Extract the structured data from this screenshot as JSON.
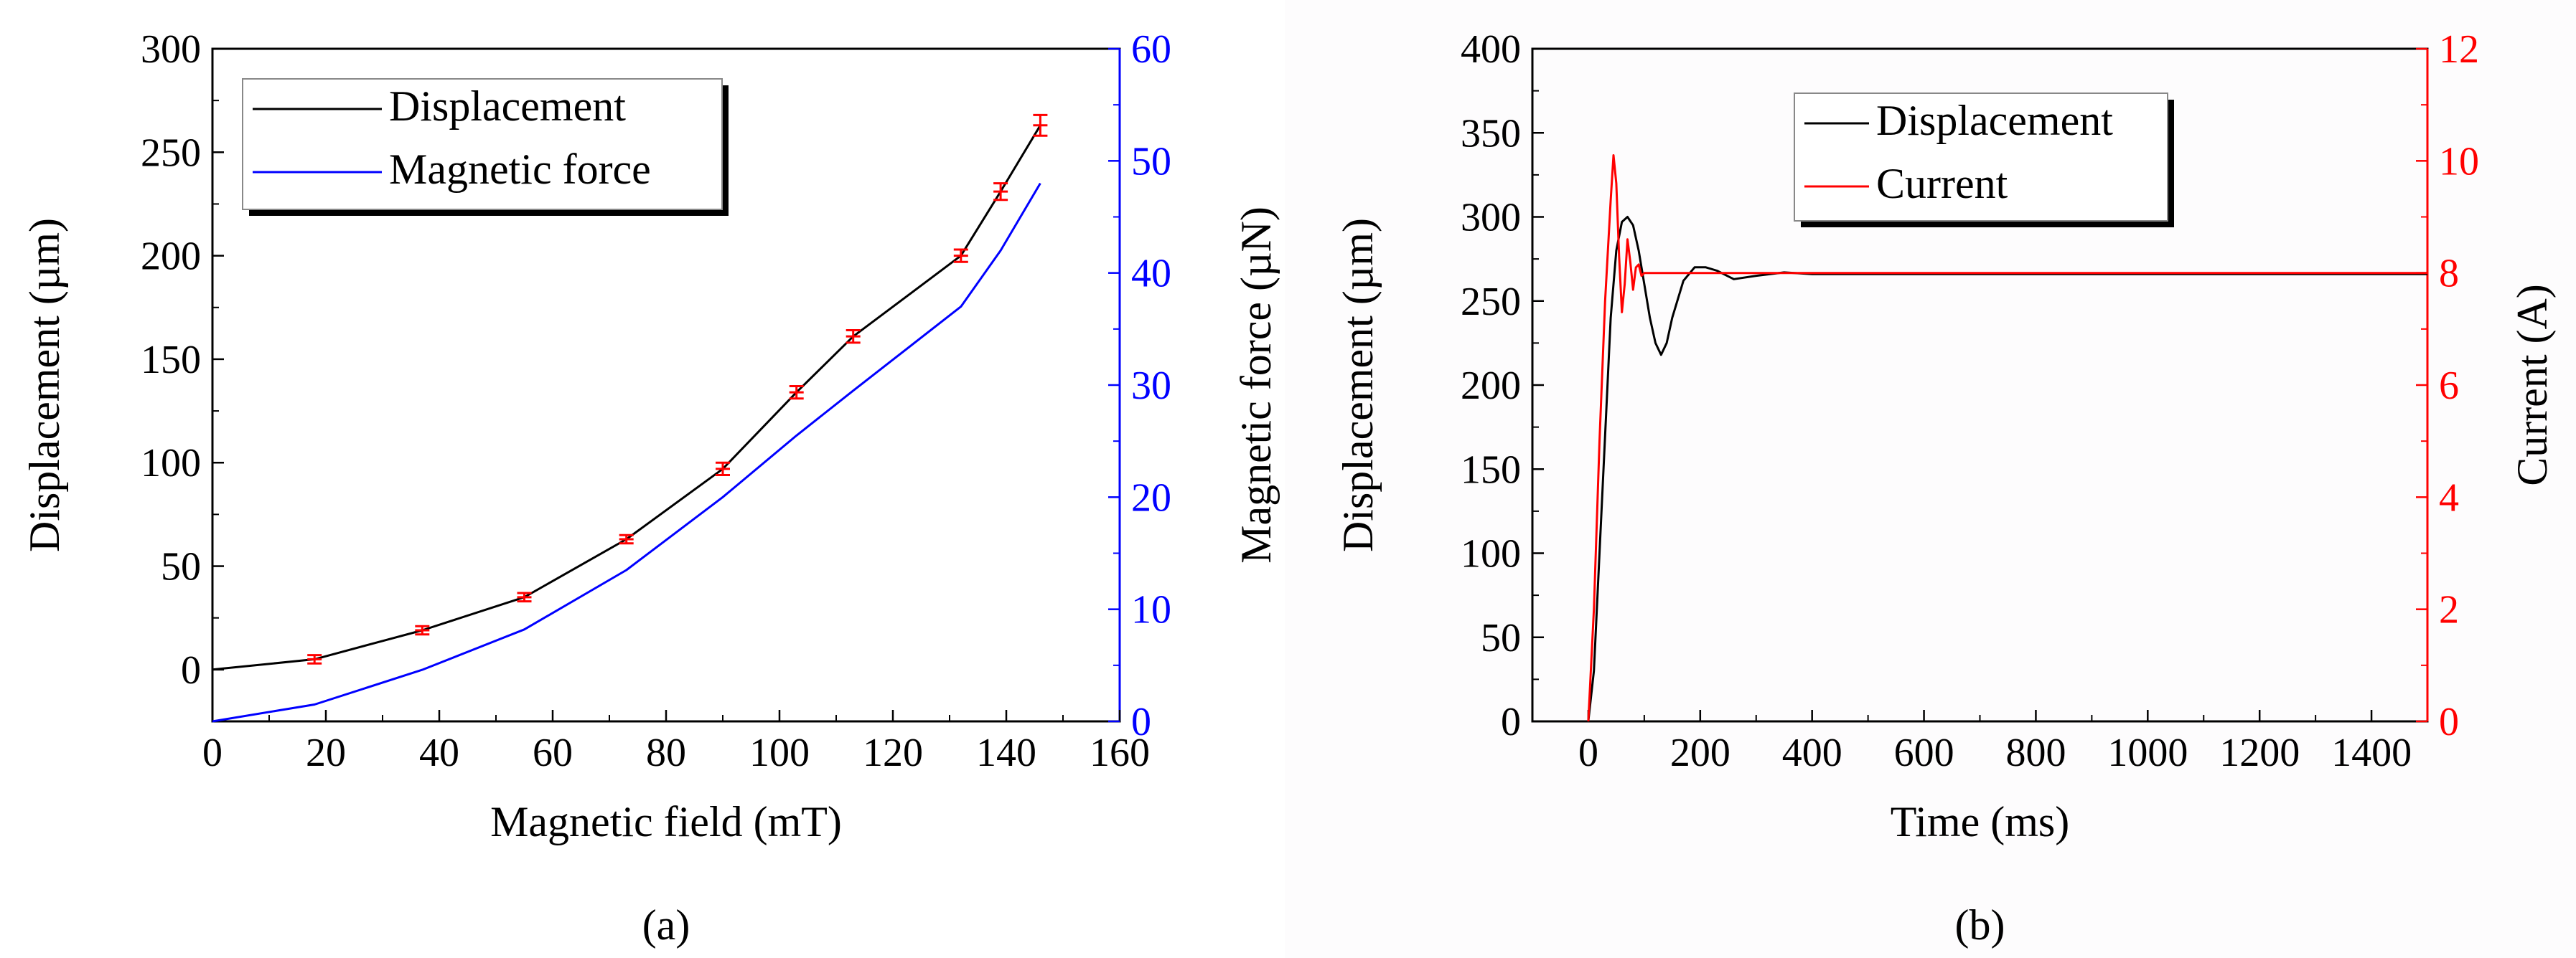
{
  "chart_data": [
    {
      "type": "line",
      "caption": "(a)",
      "xlabel": "Magnetic field (mT)",
      "ylabel": "Displacement (µm)",
      "y2label": "Magnetic force (µN)",
      "xlim": [
        0,
        160
      ],
      "ylim": [
        -25,
        300
      ],
      "y2lim": [
        0,
        60
      ],
      "xticks": [
        "0",
        "20",
        "40",
        "60",
        "80",
        "100",
        "120",
        "140",
        "160"
      ],
      "yticks": [
        "0",
        "50",
        "100",
        "150",
        "200",
        "250",
        "300"
      ],
      "y2ticks": [
        "0",
        "10",
        "20",
        "30",
        "40",
        "50",
        "60"
      ],
      "legend": [
        "Displacement",
        "Magnetic force"
      ],
      "legend_position": "top-left",
      "series": [
        {
          "name": "Displacement",
          "axis": "left",
          "color": "#000000",
          "x": [
            0,
            18,
            37,
            55,
            73,
            90,
            103,
            113,
            132,
            139,
            146
          ],
          "y": [
            0,
            5,
            19,
            35,
            63,
            97,
            134,
            161,
            200,
            231,
            263
          ],
          "error": [
            0,
            2,
            2,
            2,
            2,
            3,
            3,
            3,
            3,
            4,
            5
          ],
          "error_color": "#ff0000"
        },
        {
          "name": "Magnetic force",
          "axis": "right",
          "color": "#0000ff",
          "x": [
            0,
            18,
            37,
            55,
            73,
            90,
            103,
            113,
            132,
            139,
            146
          ],
          "y": [
            0,
            1.5,
            4.6,
            8.2,
            13.5,
            20,
            25.5,
            29.5,
            37,
            42,
            48
          ]
        }
      ]
    },
    {
      "type": "line",
      "caption": "(b)",
      "xlabel": "Time (ms)",
      "ylabel": "Displacement (µm)",
      "y2label": "Current (A)",
      "xlim": [
        -100,
        1500
      ],
      "ylim": [
        0,
        400
      ],
      "y2lim": [
        0,
        12
      ],
      "xticks": [
        "0",
        "200",
        "400",
        "600",
        "800",
        "1000",
        "1200",
        "1400"
      ],
      "yticks": [
        "0",
        "50",
        "100",
        "150",
        "200",
        "250",
        "300",
        "350",
        "400"
      ],
      "y2ticks": [
        "0",
        "2",
        "4",
        "6",
        "8",
        "10",
        "12"
      ],
      "legend": [
        "Displacement",
        "Current"
      ],
      "legend_position": "top-center",
      "series": [
        {
          "name": "Displacement",
          "axis": "left",
          "color": "#000000",
          "x": [
            0,
            10,
            20,
            30,
            40,
            50,
            60,
            70,
            80,
            90,
            100,
            110,
            120,
            130,
            140,
            150,
            170,
            190,
            210,
            230,
            260,
            300,
            350,
            400,
            600,
            1000,
            1500
          ],
          "y": [
            0,
            30,
            100,
            170,
            240,
            280,
            297,
            300,
            295,
            280,
            260,
            240,
            225,
            218,
            225,
            240,
            262,
            270,
            270,
            268,
            263,
            265,
            267,
            266,
            266,
            266,
            266
          ]
        },
        {
          "name": "Current",
          "axis": "right",
          "color": "#ff0000",
          "x": [
            0,
            10,
            20,
            30,
            40,
            45,
            50,
            55,
            60,
            65,
            70,
            75,
            80,
            85,
            90,
            95,
            100,
            110,
            120,
            1500
          ],
          "y": [
            0,
            2,
            5,
            7.5,
            9.3,
            10.1,
            9.6,
            8.3,
            7.3,
            7.8,
            8.6,
            8.2,
            7.7,
            8.1,
            8.15,
            7.95,
            8.0,
            8.0,
            8.0,
            8.0
          ]
        }
      ]
    }
  ]
}
